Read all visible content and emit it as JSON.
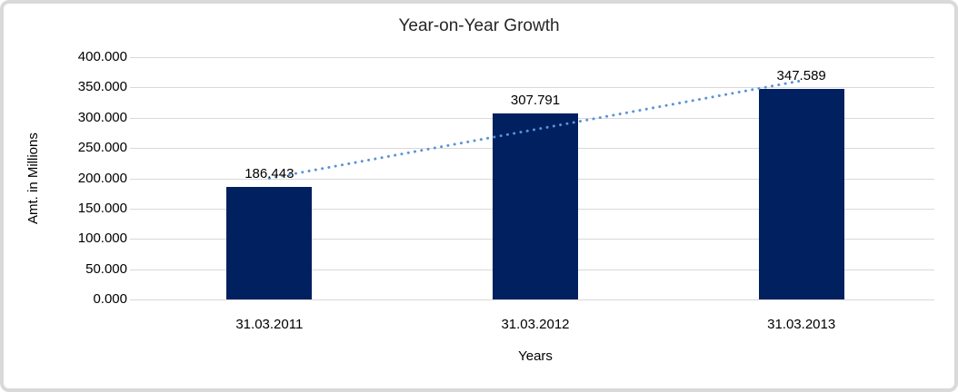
{
  "chart_data": {
    "type": "bar",
    "title": "Year-on-Year Growth",
    "categories": [
      "31.03.2011",
      "31.03.2012",
      "31.03.2013"
    ],
    "values": [
      186.443,
      307.791,
      347.589
    ],
    "value_labels": [
      "186.443",
      "307.791",
      "347.589"
    ],
    "xlabel": "Years",
    "ylabel": "Amt. in Millions",
    "ylim": [
      0,
      400
    ],
    "ytick_step": 50,
    "ytick_labels": [
      "0.000",
      "50.000",
      "100.000",
      "150.000",
      "200.000",
      "250.000",
      "300.000",
      "350.000",
      "400.000"
    ],
    "grid": true,
    "legend": "none",
    "trendline": {
      "type": "linear",
      "style": "dotted",
      "color": "#5B93D5"
    },
    "colors": {
      "bar": "#002060",
      "gridline": "#D9D9D9",
      "border": "#D9D9D9",
      "text": "#000000",
      "title_text": "#262626"
    }
  }
}
